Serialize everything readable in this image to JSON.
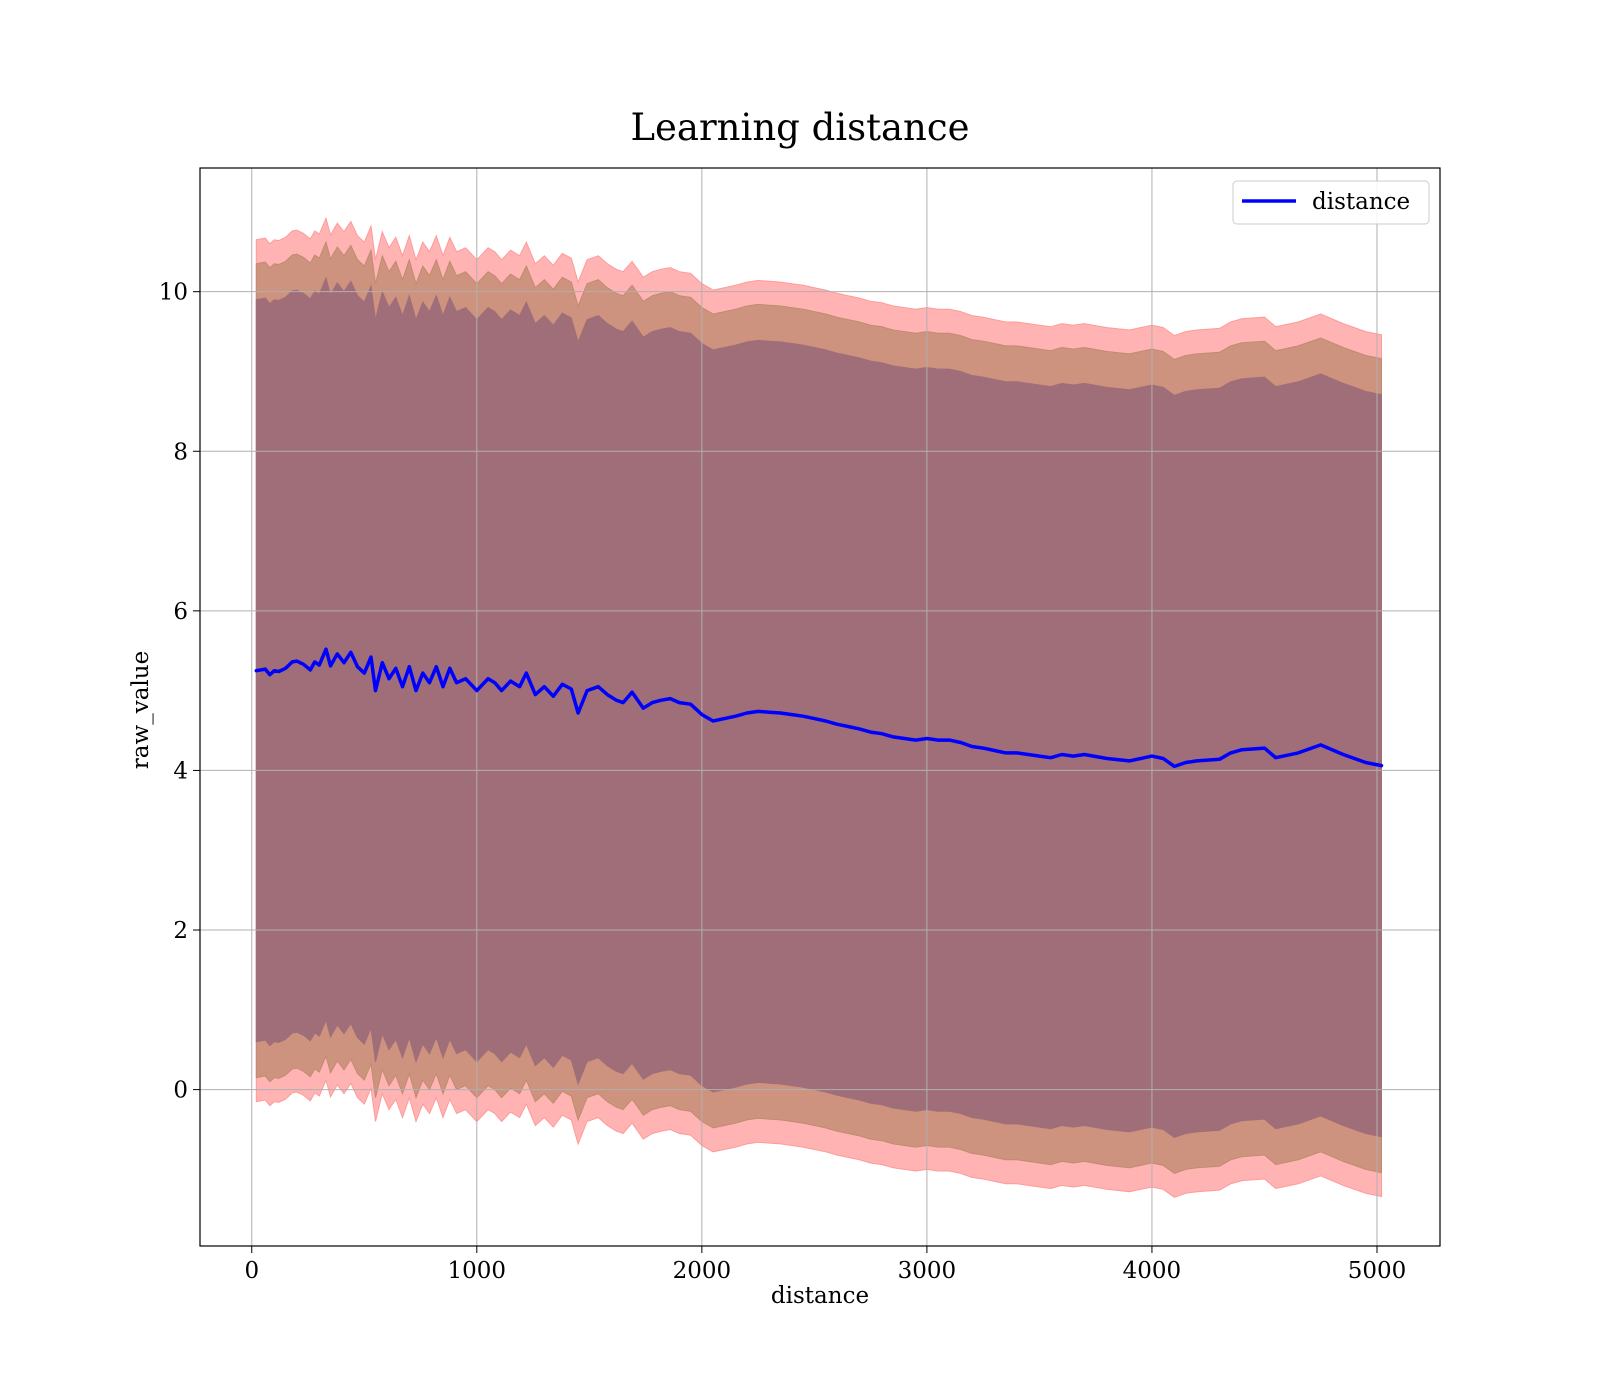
{
  "chart_data": {
    "type": "area",
    "title": "Learning distance",
    "xlabel": "distance",
    "ylabel": "raw_value",
    "xlim": [
      -230,
      5280
    ],
    "ylim": [
      -1.96,
      11.55
    ],
    "x_ticks": [
      0,
      1000,
      2000,
      3000,
      4000,
      5000
    ],
    "y_ticks": [
      0,
      2,
      4,
      6,
      8,
      10
    ],
    "x_tick_labels": [
      "0",
      "1000",
      "2000",
      "3000",
      "4000",
      "5000"
    ],
    "y_tick_labels": [
      "0",
      "2",
      "4",
      "6",
      "8",
      "10"
    ],
    "grid": true,
    "legend": {
      "placement": "top-right",
      "entries": [
        "distance"
      ]
    },
    "colors": {
      "line": "#0000ff",
      "band_outer": "#ff9a9a",
      "band_middle": "#c08b70",
      "band_inner": "#a06e78"
    },
    "series": [
      {
        "name": "distance",
        "x": [
          20,
          60,
          80,
          100,
          120,
          150,
          180,
          200,
          230,
          260,
          280,
          300,
          330,
          350,
          380,
          410,
          440,
          470,
          500,
          530,
          550,
          580,
          610,
          640,
          670,
          700,
          730,
          760,
          790,
          820,
          850,
          880,
          910,
          950,
          1000,
          1050,
          1080,
          1110,
          1150,
          1190,
          1220,
          1260,
          1300,
          1340,
          1380,
          1420,
          1450,
          1490,
          1540,
          1580,
          1620,
          1650,
          1690,
          1740,
          1780,
          1820,
          1860,
          1900,
          1950,
          2000,
          2050,
          2100,
          2150,
          2200,
          2250,
          2300,
          2350,
          2400,
          2450,
          2500,
          2550,
          2600,
          2650,
          2700,
          2750,
          2800,
          2850,
          2900,
          2950,
          3000,
          3050,
          3100,
          3150,
          3200,
          3250,
          3300,
          3350,
          3400,
          3450,
          3500,
          3550,
          3600,
          3650,
          3700,
          3800,
          3900,
          4000,
          4050,
          4100,
          4150,
          4200,
          4300,
          4350,
          4400,
          4500,
          4550,
          4650,
          4750,
          4850,
          4950,
          5020
        ],
        "values": [
          5.25,
          5.27,
          5.2,
          5.25,
          5.24,
          5.28,
          5.36,
          5.37,
          5.33,
          5.26,
          5.36,
          5.32,
          5.52,
          5.31,
          5.46,
          5.35,
          5.48,
          5.3,
          5.22,
          5.42,
          5.0,
          5.35,
          5.15,
          5.28,
          5.05,
          5.3,
          5.0,
          5.22,
          5.1,
          5.3,
          5.05,
          5.28,
          5.1,
          5.15,
          5.0,
          5.15,
          5.1,
          5.0,
          5.12,
          5.05,
          5.22,
          4.95,
          5.05,
          4.93,
          5.08,
          5.02,
          4.72,
          5.0,
          5.05,
          4.95,
          4.88,
          4.85,
          4.98,
          4.78,
          4.85,
          4.88,
          4.9,
          4.85,
          4.83,
          4.7,
          4.62,
          4.65,
          4.68,
          4.72,
          4.74,
          4.73,
          4.72,
          4.7,
          4.68,
          4.65,
          4.62,
          4.58,
          4.55,
          4.52,
          4.48,
          4.46,
          4.42,
          4.4,
          4.38,
          4.4,
          4.38,
          4.38,
          4.35,
          4.3,
          4.28,
          4.25,
          4.22,
          4.22,
          4.2,
          4.18,
          4.16,
          4.2,
          4.18,
          4.2,
          4.15,
          4.12,
          4.18,
          4.15,
          4.05,
          4.1,
          4.12,
          4.14,
          4.22,
          4.26,
          4.28,
          4.16,
          4.22,
          4.32,
          4.2,
          4.1,
          4.06
        ]
      }
    ],
    "bands": [
      {
        "name": "outer",
        "half_width": 5.4,
        "color": "#ff9a9a",
        "opacity": 0.75
      },
      {
        "name": "middle",
        "half_width": 5.1,
        "color": "#c08b70",
        "opacity": 0.8
      },
      {
        "name": "inner",
        "half_width": 4.65,
        "color": "#a06e78",
        "opacity": 1.0
      }
    ]
  }
}
